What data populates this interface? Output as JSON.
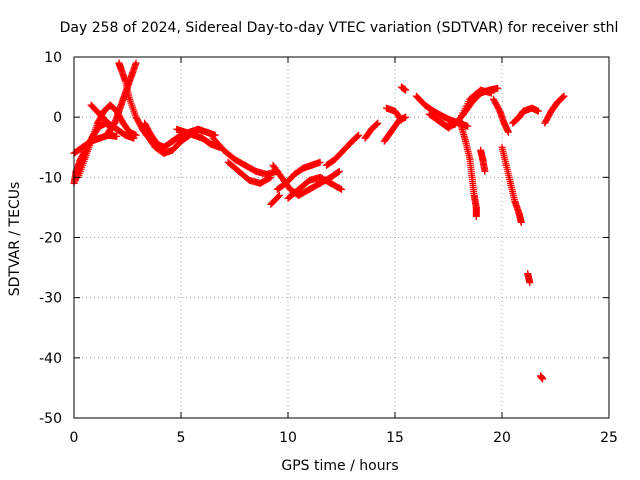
{
  "chart_data": {
    "type": "scatter",
    "title": "Day 258 of 2024, Sidereal Day-to-day VTEC variation (SDTVAR) for receiver sthl",
    "xlabel": "GPS time / hours",
    "ylabel": "SDTVAR / TECUs",
    "xlim": [
      0,
      25
    ],
    "ylim": [
      -50,
      10
    ],
    "xticks": [
      0,
      5,
      10,
      15,
      20,
      25
    ],
    "yticks": [
      -50,
      -40,
      -30,
      -20,
      -10,
      0,
      10
    ],
    "grid": true,
    "marker": "+",
    "color": "#ff0000",
    "series": [
      {
        "name": "SDTVAR",
        "tracks": [
          [
            [
              0.0,
              -11
            ],
            [
              0.1,
              -9
            ],
            [
              0.3,
              -7
            ],
            [
              0.6,
              -5
            ],
            [
              0.9,
              -3
            ],
            [
              1.2,
              -1.5
            ],
            [
              1.5,
              -1
            ],
            [
              1.8,
              -2
            ]
          ],
          [
            [
              0.0,
              -6
            ],
            [
              0.4,
              -5
            ],
            [
              0.8,
              -4
            ],
            [
              1.2,
              -3.5
            ],
            [
              1.6,
              -3
            ],
            [
              2.0,
              -3.2
            ]
          ],
          [
            [
              0.2,
              -10
            ],
            [
              0.5,
              -7
            ],
            [
              0.8,
              -4
            ],
            [
              1.1,
              -1
            ],
            [
              1.4,
              1
            ],
            [
              1.7,
              2
            ],
            [
              2.0,
              1
            ],
            [
              2.3,
              -1
            ],
            [
              2.6,
              -2.5
            ],
            [
              2.9,
              -3
            ]
          ],
          [
            [
              0.8,
              2
            ],
            [
              1.2,
              0.5
            ],
            [
              1.6,
              -1
            ],
            [
              2.0,
              -2
            ],
            [
              2.4,
              -3
            ],
            [
              2.8,
              -3.5
            ]
          ],
          [
            [
              1.6,
              -2.5
            ],
            [
              1.9,
              -1
            ],
            [
              2.1,
              1
            ],
            [
              2.3,
              3
            ],
            [
              2.5,
              5
            ],
            [
              2.7,
              7
            ],
            [
              2.9,
              9
            ]
          ],
          [
            [
              2.1,
              9
            ],
            [
              2.2,
              8
            ],
            [
              2.4,
              6
            ],
            [
              2.6,
              3
            ],
            [
              2.9,
              0
            ],
            [
              3.2,
              -2
            ],
            [
              3.4,
              -3
            ]
          ],
          [
            [
              3.3,
              -1
            ],
            [
              3.6,
              -3
            ],
            [
              3.9,
              -4.5
            ],
            [
              4.2,
              -5
            ],
            [
              4.6,
              -4
            ],
            [
              5.0,
              -3
            ],
            [
              5.4,
              -2.5
            ],
            [
              5.8,
              -2
            ],
            [
              6.2,
              -2.5
            ],
            [
              6.6,
              -3
            ]
          ],
          [
            [
              3.4,
              -3
            ],
            [
              3.8,
              -5
            ],
            [
              4.2,
              -6
            ],
            [
              4.6,
              -5.5
            ],
            [
              5.0,
              -4
            ],
            [
              5.4,
              -3
            ]
          ],
          [
            [
              4.8,
              -2
            ],
            [
              5.2,
              -2.5
            ],
            [
              5.6,
              -3
            ],
            [
              6.0,
              -3.5
            ],
            [
              6.4,
              -4.5
            ],
            [
              6.8,
              -5
            ]
          ],
          [
            [
              6.5,
              -3.5
            ],
            [
              7.0,
              -5.5
            ],
            [
              7.5,
              -7
            ],
            [
              8.0,
              -8
            ],
            [
              8.5,
              -9
            ],
            [
              9.0,
              -9.5
            ],
            [
              9.5,
              -9
            ]
          ],
          [
            [
              7.2,
              -7.5
            ],
            [
              7.7,
              -9
            ],
            [
              8.2,
              -10.5
            ],
            [
              8.7,
              -11
            ],
            [
              9.2,
              -10
            ]
          ],
          [
            [
              9.3,
              -8
            ],
            [
              9.7,
              -10
            ],
            [
              10.1,
              -12
            ],
            [
              10.5,
              -13
            ],
            [
              11.0,
              -12
            ],
            [
              11.5,
              -11
            ],
            [
              12.0,
              -10
            ],
            [
              12.4,
              -9
            ]
          ],
          [
            [
              9.5,
              -12
            ],
            [
              9.9,
              -11
            ],
            [
              10.3,
              -9.5
            ],
            [
              10.7,
              -8.5
            ],
            [
              11.1,
              -8
            ],
            [
              11.5,
              -7.5
            ]
          ],
          [
            [
              10.0,
              -13.5
            ],
            [
              10.5,
              -12
            ],
            [
              11.0,
              -10.5
            ],
            [
              11.5,
              -10
            ],
            [
              12.0,
              -11
            ],
            [
              12.5,
              -12
            ]
          ],
          [
            [
              9.2,
              -14.5
            ],
            [
              9.6,
              -13
            ]
          ],
          [
            [
              11.8,
              -8
            ],
            [
              12.2,
              -7
            ],
            [
              12.6,
              -5.5
            ],
            [
              13.0,
              -4
            ],
            [
              13.3,
              -3
            ]
          ],
          [
            [
              13.6,
              -3.5
            ],
            [
              13.9,
              -2
            ],
            [
              14.2,
              -1
            ]
          ],
          [
            [
              14.5,
              -4
            ],
            [
              14.8,
              -2.5
            ],
            [
              15.2,
              -0.5
            ],
            [
              15.5,
              0
            ]
          ],
          [
            [
              14.6,
              1.5
            ],
            [
              15.0,
              1.0
            ],
            [
              15.3,
              -0.5
            ]
          ],
          [
            [
              15.3,
              5
            ],
            [
              15.5,
              4.5
            ]
          ],
          [
            [
              16.0,
              3.5
            ],
            [
              16.4,
              2
            ],
            [
              16.8,
              1
            ],
            [
              17.2,
              0.2
            ],
            [
              17.6,
              -0.5
            ],
            [
              18.0,
              -1
            ],
            [
              18.4,
              -1.5
            ]
          ],
          [
            [
              16.6,
              0.5
            ],
            [
              17.0,
              -0.5
            ],
            [
              17.4,
              -1.5
            ],
            [
              17.8,
              -1.2
            ],
            [
              18.2,
              0.5
            ],
            [
              18.6,
              2.5
            ],
            [
              19.0,
              4
            ],
            [
              19.4,
              4.5
            ],
            [
              19.8,
              4.8
            ]
          ],
          [
            [
              17.0,
              -0.5
            ],
            [
              17.5,
              -1.8
            ],
            [
              18.0,
              -0.5
            ],
            [
              18.5,
              3
            ],
            [
              19.0,
              4.5
            ],
            [
              19.5,
              4
            ]
          ],
          [
            [
              18.1,
              -1.5
            ],
            [
              18.3,
              -4
            ],
            [
              18.5,
              -7
            ],
            [
              18.6,
              -10
            ],
            [
              18.7,
              -13
            ],
            [
              18.8,
              -15
            ],
            [
              18.8,
              -16.5
            ]
          ],
          [
            [
              19.0,
              -5.5
            ],
            [
              19.1,
              -7
            ],
            [
              19.2,
              -9
            ]
          ],
          [
            [
              19.6,
              3
            ],
            [
              19.9,
              1
            ],
            [
              20.1,
              -1
            ],
            [
              20.3,
              -2.5
            ]
          ],
          [
            [
              20.0,
              -5
            ],
            [
              20.2,
              -8
            ],
            [
              20.4,
              -11
            ],
            [
              20.6,
              -14
            ],
            [
              20.8,
              -16
            ],
            [
              20.9,
              -17.5
            ]
          ],
          [
            [
              20.5,
              -1
            ],
            [
              20.8,
              0
            ],
            [
              21.0,
              1
            ],
            [
              21.4,
              1.5
            ],
            [
              21.7,
              1
            ]
          ],
          [
            [
              21.2,
              -26
            ],
            [
              21.3,
              -27.5
            ]
          ],
          [
            [
              21.8,
              -43
            ],
            [
              21.9,
              -43.5
            ]
          ],
          [
            [
              22.0,
              -1
            ],
            [
              22.3,
              1
            ],
            [
              22.6,
              2.5
            ],
            [
              22.9,
              3.5
            ]
          ]
        ]
      }
    ]
  }
}
